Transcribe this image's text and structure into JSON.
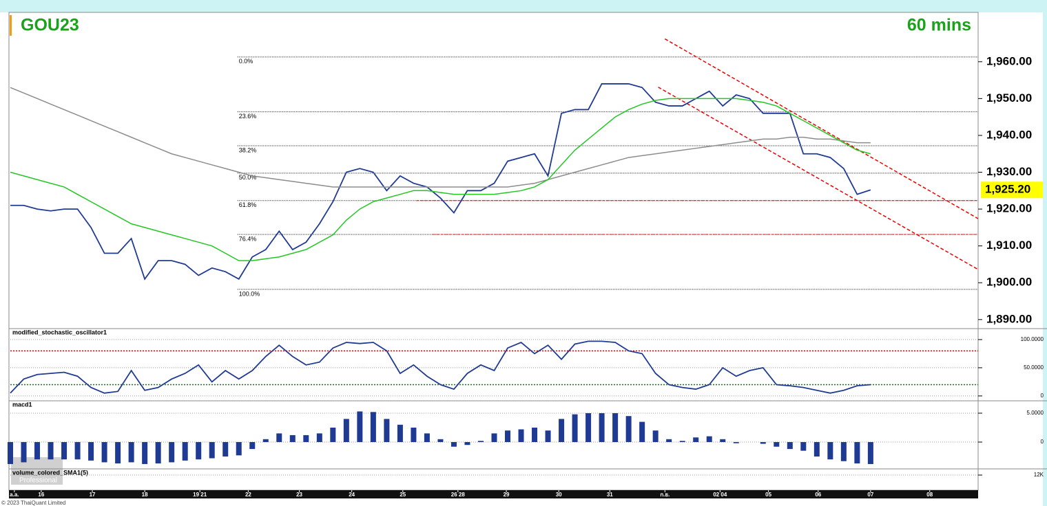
{
  "x_axis": {
    "xlim": [
      0,
      72
    ],
    "xticks": [
      {
        "value": 0.3,
        "label": "a.a."
      },
      {
        "value": 2.3,
        "label": "16"
      },
      {
        "value": 6.1,
        "label": "17"
      },
      {
        "value": 10,
        "label": "18"
      },
      {
        "value": 14.1,
        "label": "19 21"
      },
      {
        "value": 17.7,
        "label": "22"
      },
      {
        "value": 21.5,
        "label": "23"
      },
      {
        "value": 25.4,
        "label": "24"
      },
      {
        "value": 29.2,
        "label": "25"
      },
      {
        "value": 33.3,
        "label": "26 28"
      },
      {
        "value": 36.9,
        "label": "29"
      },
      {
        "value": 40.8,
        "label": "30"
      },
      {
        "value": 44.6,
        "label": "31"
      },
      {
        "value": 48.7,
        "label": "ก.ย."
      },
      {
        "value": 52.8,
        "label": "02 04"
      },
      {
        "value": 56.4,
        "label": "05"
      },
      {
        "value": 60.1,
        "label": "06"
      },
      {
        "value": 64,
        "label": "07"
      },
      {
        "value": 68.4,
        "label": "08"
      }
    ]
  },
  "footer": "© 2023 ThaiQuant Limited",
  "watermark": "Professional",
  "chart_data": [
    {
      "type": "line",
      "title": "GOU23",
      "subtitle": "60 mins",
      "ylim": [
        1888.1,
        1973.4
      ],
      "yticks": [
        {
          "value": 1890,
          "label": "1,890.00"
        },
        {
          "value": 1900,
          "label": "1,900.00"
        },
        {
          "value": 1910,
          "label": "1,910.00"
        },
        {
          "value": 1920,
          "label": "1,920.00"
        },
        {
          "value": 1930,
          "label": "1,930.00"
        },
        {
          "value": 1940,
          "label": "1,940.00"
        },
        {
          "value": 1950,
          "label": "1,950.00"
        },
        {
          "value": 1960,
          "label": "1,960.00"
        }
      ],
      "series": [
        {
          "color": "#1f3a93",
          "values": [
            1921,
            1921,
            1920,
            1919.5,
            1920,
            1920,
            1915,
            1908,
            1908,
            1912,
            1901,
            1906,
            1906,
            1905,
            1902,
            1904,
            1903,
            1901,
            1907,
            1909,
            1914,
            1909,
            1911,
            1916,
            1922,
            1930,
            1931,
            1930,
            1925,
            1929,
            1927,
            1926,
            1923,
            1919,
            1925,
            1925,
            1927,
            1933,
            1934,
            1935,
            1929,
            1946,
            1947,
            1947,
            1954,
            1954,
            1954,
            1953,
            1949,
            1948,
            1948,
            1950,
            1952,
            1948,
            1951,
            1950,
            1946,
            1946,
            1946,
            1935,
            1935,
            1934,
            1931,
            1924,
            1925.2
          ]
        },
        {
          "color": "#8c8c8c",
          "values": [
            1953,
            1951.5,
            1950,
            1948.5,
            1947,
            1945.5,
            1944,
            1942.5,
            1941,
            1939.5,
            1938,
            1936.5,
            1935,
            1934,
            1933,
            1932,
            1931,
            1930,
            1929,
            1928.5,
            1928,
            1927.5,
            1927,
            1926.5,
            1926,
            1926,
            1926,
            1926,
            1926,
            1926,
            1926,
            1926,
            1926,
            1926,
            1926,
            1926,
            1926,
            1926,
            1926.5,
            1927,
            1928,
            1929,
            1930,
            1931,
            1932,
            1933,
            1934,
            1934.5,
            1935,
            1935.5,
            1936,
            1936.5,
            1937,
            1937.5,
            1938,
            1938.5,
            1939,
            1939,
            1939.5,
            1939.5,
            1939,
            1939,
            1938.5,
            1938,
            1938
          ]
        },
        {
          "color": "#22c722",
          "values": [
            1930,
            1929,
            1928,
            1927,
            1926,
            1924,
            1922,
            1920,
            1918,
            1916,
            1915,
            1914,
            1913,
            1912,
            1911,
            1910,
            1908,
            1906,
            1906,
            1906.5,
            1907,
            1908,
            1909,
            1911,
            1913,
            1917,
            1920,
            1922,
            1923,
            1924,
            1925,
            1925,
            1924.5,
            1924,
            1924,
            1924,
            1924,
            1924.5,
            1925,
            1926,
            1928,
            1932,
            1936,
            1939,
            1942,
            1945,
            1947,
            1948.5,
            1949.5,
            1950,
            1950,
            1950,
            1950,
            1950,
            1950,
            1949.5,
            1949,
            1948,
            1946,
            1944,
            1942,
            1940,
            1938,
            1936,
            1935
          ]
        }
      ],
      "last_price": {
        "value": 1925.2,
        "label": "1,925.20"
      },
      "fib_start": 16.9,
      "fib_levels": [
        {
          "label": "0.0%",
          "value": 1961.3
        },
        {
          "label": "23.6%",
          "value": 1946.4
        },
        {
          "label": "38.2%",
          "value": 1937.2
        },
        {
          "label": "50.0%",
          "value": 1929.75
        },
        {
          "label": "61.8%",
          "value": 1922.3
        },
        {
          "label": "76.4%",
          "value": 1913.1
        },
        {
          "label": "100.0%",
          "value": 1898.2
        }
      ],
      "trendlines": [
        {
          "x": [
            48.7,
            72
          ],
          "values": [
            1966.2,
            1917.4
          ]
        },
        {
          "x": [
            48.2,
            72
          ],
          "values": [
            1953.1,
            1903.6
          ]
        }
      ],
      "hlines": [
        {
          "x0": 30.2,
          "value": 1922.3
        },
        {
          "x0": 31.4,
          "value": 1913.1
        }
      ]
    },
    {
      "type": "line",
      "title": "modified_stochastic_oscillator1",
      "ylim": [
        -5,
        117
      ],
      "yticks": [
        {
          "value": 100,
          "label": "100.0000"
        },
        {
          "value": 50,
          "label": "50.0000"
        },
        0
      ],
      "levels": [
        {
          "value": 80,
          "color": "#e00000"
        },
        {
          "value": 20,
          "color": "#008800"
        }
      ],
      "series": [
        {
          "color": "#1f3a93",
          "values": [
            5,
            30,
            38,
            40,
            42,
            35,
            15,
            5,
            8,
            45,
            10,
            15,
            30,
            40,
            55,
            25,
            45,
            30,
            45,
            70,
            90,
            70,
            55,
            60,
            85,
            95,
            93,
            95,
            80,
            40,
            55,
            35,
            20,
            12,
            40,
            55,
            45,
            85,
            95,
            75,
            90,
            65,
            92,
            97,
            97,
            95,
            80,
            75,
            40,
            20,
            15,
            12,
            20,
            50,
            35,
            45,
            50,
            20,
            18,
            15,
            10,
            5,
            10,
            18,
            20
          ]
        }
      ]
    },
    {
      "type": "bar",
      "title": "macd1",
      "ylim": [
        -4.4,
        6.9
      ],
      "yticks": [
        {
          "value": 5,
          "label": "5.0000"
        },
        0
      ],
      "color": "#1f3a93",
      "values": [
        -3.8,
        -3.5,
        -3,
        -3,
        -3,
        -3,
        -3.2,
        -3.5,
        -3.7,
        -3.5,
        -3.8,
        -3.7,
        -3.5,
        -3.2,
        -3,
        -2.8,
        -2.5,
        -2.3,
        -1.2,
        0.5,
        1.5,
        1.2,
        1.2,
        1.5,
        2.5,
        4,
        5.3,
        5.2,
        4,
        3,
        2.5,
        1.5,
        0.5,
        -0.8,
        -0.5,
        0.2,
        1.5,
        2,
        2.2,
        2.5,
        2,
        4,
        4.8,
        5,
        5,
        5,
        4.5,
        3.5,
        2,
        0.5,
        0.2,
        0.8,
        1,
        0.5,
        -0.2,
        0,
        -0.3,
        -0.8,
        -1.2,
        -1.5,
        -2.5,
        -3,
        -3.3,
        -3.7,
        -3.8
      ]
    },
    {
      "type": "bar",
      "title": "volume_colored_SMA1(5)",
      "ylim": [
        0,
        16000
      ],
      "yticks": [
        {
          "value": 12000,
          "label": "12K"
        }
      ]
    }
  ]
}
